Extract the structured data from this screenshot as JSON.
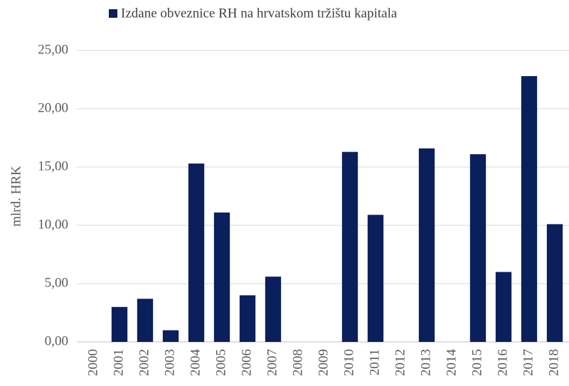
{
  "chart_data": {
    "type": "bar",
    "legend": "Izdane obveznice RH na hrvatskom tržištu kapitala",
    "y_label": "mlrd. HRK",
    "categories": [
      "2000",
      "2001",
      "2002",
      "2003",
      "2004",
      "2005",
      "2006",
      "2007",
      "2008",
      "2009",
      "2010",
      "2011",
      "2012",
      "2013",
      "2014",
      "2015",
      "2016",
      "2017",
      "2018"
    ],
    "values": [
      0,
      3.0,
      3.7,
      1.0,
      15.3,
      11.1,
      4.0,
      5.6,
      0,
      0,
      16.3,
      10.9,
      0,
      16.6,
      0,
      16.1,
      6.0,
      22.8,
      10.1
    ],
    "color": "#0a1f5c",
    "ylim": [
      0,
      25
    ],
    "yticks": [
      {
        "value": 0,
        "label": "0,00"
      },
      {
        "value": 5,
        "label": "5,00"
      },
      {
        "value": 10,
        "label": "10,00"
      },
      {
        "value": 15,
        "label": "15,00"
      },
      {
        "value": 20,
        "label": "20,00"
      },
      {
        "value": 25,
        "label": "25,00"
      }
    ],
    "grid": true
  }
}
